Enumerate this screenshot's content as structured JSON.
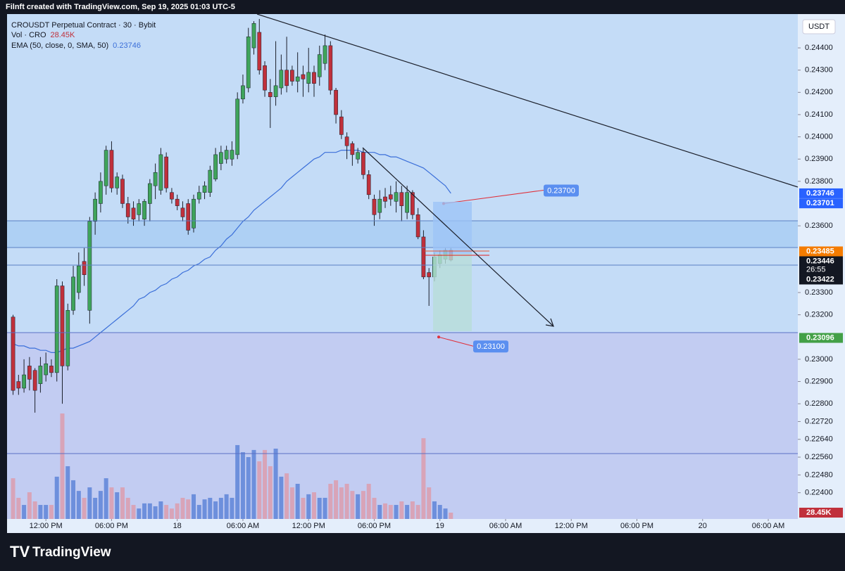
{
  "header": "Filnft created with TradingView.com, Sep 19, 2025 01:03 UTC-5",
  "footer": "TradingView",
  "chart_data": {
    "type": "candlestick",
    "title": "CROUSDT Perpetual Contract · 30 · Bybit",
    "currency": "USDT",
    "up_color": "#3fa45b",
    "down_color": "#c0303b",
    "open": [
      0.2319,
      0.229,
      0.2287,
      0.2297,
      0.2295,
      0.2289,
      0.2293,
      0.2297,
      0.2294,
      0.2333,
      0.2297,
      0.2322,
      0.233,
      0.2344,
      0.2322,
      0.2362,
      0.237,
      0.2378,
      0.2394,
      0.2377,
      0.2381,
      0.237,
      0.2368,
      0.2365,
      0.2363,
      0.237,
      0.2378,
      0.2376,
      0.2391,
      0.2375,
      0.2372,
      0.2368,
      0.237,
      0.2359,
      0.2372,
      0.2375,
      0.2375,
      0.2381,
      0.2388,
      0.239,
      0.239,
      0.2392,
      0.2417,
      0.2422,
      0.244,
      0.2447,
      0.2432,
      0.242,
      0.2418,
      0.2422,
      0.243,
      0.243,
      0.2425,
      0.2428,
      0.2424,
      0.2429,
      0.2427,
      0.2433,
      0.2441,
      0.2421,
      0.2409,
      0.24,
      0.2397,
      0.239,
      0.2393,
      0.2383,
      0.2372,
      0.2366,
      0.2373,
      0.2374,
      0.2371,
      0.2375,
      0.2366,
      0.2375,
      0.2365,
      0.2355,
      0.2339,
      0.2337,
      0.2343,
      0.2345,
      0.2349
    ],
    "high": [
      0.232,
      0.2293,
      0.23,
      0.2301,
      0.2296,
      0.2301,
      0.2303,
      0.23,
      0.2336,
      0.2335,
      0.2325,
      0.2342,
      0.2348,
      0.235,
      0.2364,
      0.2375,
      0.2384,
      0.2396,
      0.2398,
      0.2384,
      0.2383,
      0.2373,
      0.2371,
      0.2372,
      0.2372,
      0.2381,
      0.2388,
      0.2395,
      0.2393,
      0.2377,
      0.2374,
      0.2371,
      0.2372,
      0.2374,
      0.2378,
      0.238,
      0.2387,
      0.2395,
      0.2396,
      0.2396,
      0.2398,
      0.242,
      0.2428,
      0.2449,
      0.2452,
      0.2453,
      0.2434,
      0.2426,
      0.2443,
      0.2437,
      0.2445,
      0.2432,
      0.2438,
      0.2432,
      0.244,
      0.2432,
      0.2441,
      0.2446,
      0.2443,
      0.2422,
      0.2412,
      0.2402,
      0.2398,
      0.2395,
      0.2395,
      0.2385,
      0.2374,
      0.2376,
      0.2377,
      0.2378,
      0.238,
      0.2378,
      0.2378,
      0.2376,
      0.2368,
      0.2358,
      0.2341,
      0.2348,
      0.2349,
      0.235,
      0.235
    ],
    "low": [
      0.2284,
      0.2284,
      0.2285,
      0.2286,
      0.2276,
      0.2285,
      0.229,
      0.2292,
      0.229,
      0.228,
      0.2295,
      0.232,
      0.2327,
      0.2333,
      0.2316,
      0.2356,
      0.2366,
      0.2374,
      0.2375,
      0.2374,
      0.2368,
      0.2361,
      0.236,
      0.2362,
      0.236,
      0.2362,
      0.2372,
      0.2374,
      0.2375,
      0.237,
      0.2367,
      0.2362,
      0.2356,
      0.2357,
      0.237,
      0.2372,
      0.2373,
      0.238,
      0.2385,
      0.2388,
      0.2387,
      0.239,
      0.2415,
      0.242,
      0.2437,
      0.2428,
      0.2418,
      0.2404,
      0.2414,
      0.2419,
      0.242,
      0.2423,
      0.242,
      0.2418,
      0.242,
      0.2418,
      0.2423,
      0.243,
      0.2419,
      0.2406,
      0.2399,
      0.239,
      0.2387,
      0.2388,
      0.2381,
      0.2372,
      0.236,
      0.2363,
      0.2368,
      0.2369,
      0.2366,
      0.2362,
      0.2363,
      0.2363,
      0.2354,
      0.2336,
      0.2324,
      0.2335,
      0.2341,
      0.2343,
      0.2344
    ],
    "close": [
      0.2286,
      0.2287,
      0.2293,
      0.2291,
      0.2286,
      0.2297,
      0.2298,
      0.2294,
      0.2333,
      0.2297,
      0.2322,
      0.2337,
      0.2342,
      0.2338,
      0.2362,
      0.2372,
      0.238,
      0.2394,
      0.2377,
      0.2382,
      0.237,
      0.2364,
      0.2363,
      0.237,
      0.2371,
      0.2379,
      0.2384,
      0.2392,
      0.2377,
      0.2372,
      0.2369,
      0.2364,
      0.2358,
      0.2372,
      0.2375,
      0.2378,
      0.2385,
      0.2392,
      0.2393,
      0.2394,
      0.2394,
      0.2417,
      0.2423,
      0.2445,
      0.2451,
      0.243,
      0.2421,
      0.2418,
      0.2423,
      0.243,
      0.2423,
      0.2425,
      0.2427,
      0.2426,
      0.2429,
      0.2424,
      0.2437,
      0.2441,
      0.2421,
      0.241,
      0.2401,
      0.2396,
      0.2392,
      0.2393,
      0.2383,
      0.2374,
      0.2365,
      0.2372,
      0.2371,
      0.2372,
      0.2375,
      0.2369,
      0.2375,
      0.2365,
      0.2355,
      0.2337,
      0.2337,
      0.2346,
      0.2347,
      0.2349,
      0.23446
    ],
    "close_label": "0.23446",
    "countdown": "26:55",
    "volume": {
      "name": "Vol · CRO",
      "up_color": "#6d8fdc",
      "down_color": "#d8a4b8",
      "last_value_label": "28.45K",
      "values": [
        183000,
        95000,
        63000,
        120000,
        79000,
        63000,
        63000,
        63000,
        190000,
        474000,
        237000,
        174000,
        126000,
        95000,
        142000,
        95000,
        126000,
        183000,
        142000,
        120000,
        142000,
        95000,
        63000,
        47000,
        70000,
        70000,
        57000,
        79000,
        63000,
        47000,
        70000,
        95000,
        88000,
        111000,
        63000,
        88000,
        95000,
        79000,
        95000,
        111000,
        95000,
        332000,
        300000,
        278000,
        310000,
        259000,
        310000,
        237000,
        316000,
        190000,
        205000,
        142000,
        158000,
        95000,
        111000,
        120000,
        95000,
        95000,
        158000,
        174000,
        142000,
        158000,
        126000,
        111000,
        126000,
        158000,
        95000,
        63000,
        70000,
        63000,
        63000,
        79000,
        63000,
        79000,
        63000,
        363000,
        142000,
        79000,
        63000,
        47000,
        28450
      ]
    },
    "ema": {
      "name": "EMA (50, close, 0, SMA, 50)",
      "color": "#3b6fd9",
      "value_label": "0.23746",
      "values": [
        0.2307,
        0.2306,
        0.2306,
        0.2305,
        0.2305,
        0.2304,
        0.2304,
        0.2303,
        0.2303,
        0.2304,
        0.2305,
        0.2305,
        0.2306,
        0.2307,
        0.2308,
        0.231,
        0.2312,
        0.2314,
        0.2316,
        0.2318,
        0.232,
        0.2322,
        0.2324,
        0.2327,
        0.2328,
        0.233,
        0.2331,
        0.2333,
        0.2334,
        0.2336,
        0.2337,
        0.2339,
        0.234,
        0.2342,
        0.2343,
        0.2345,
        0.2346,
        0.2349,
        0.2351,
        0.2354,
        0.2356,
        0.2359,
        0.2362,
        0.2364,
        0.2367,
        0.2369,
        0.2371,
        0.2373,
        0.2375,
        0.2377,
        0.238,
        0.2382,
        0.2384,
        0.2386,
        0.2388,
        0.239,
        0.2391,
        0.2393,
        0.2393,
        0.2393,
        0.2394,
        0.2394,
        0.2394,
        0.2394,
        0.2393,
        0.2393,
        0.2393,
        0.2392,
        0.2392,
        0.2391,
        0.2391,
        0.239,
        0.2389,
        0.2388,
        0.2387,
        0.2386,
        0.2384,
        0.2382,
        0.238,
        0.2378,
        0.23746
      ]
    },
    "price_badges": [
      {
        "value": 0.23701,
        "label": "0.23701",
        "color": "#2962ff"
      },
      {
        "value": 0.23485,
        "label": "0.23485",
        "color": "#f57c00"
      },
      {
        "value": 0.23422,
        "label": "0.23422",
        "color": "#131722"
      },
      {
        "value": 0.23096,
        "label": "0.23096",
        "color": "#43a047"
      }
    ],
    "targets": [
      {
        "value": 0.237,
        "label": "0.23700"
      },
      {
        "value": 0.231,
        "label": "0.23100"
      }
    ],
    "grid": false,
    "xlim": [
      -1.1,
      143.4
    ],
    "xticks": [
      {
        "value": 6,
        "label": "12:00 PM"
      },
      {
        "value": 18,
        "label": "06:00 PM"
      },
      {
        "value": 30,
        "label": "18"
      },
      {
        "value": 42,
        "label": "06:00 AM"
      },
      {
        "value": 54,
        "label": "12:00 PM"
      },
      {
        "value": 66,
        "label": "06:00 PM"
      },
      {
        "value": 78,
        "label": "19"
      },
      {
        "value": 90,
        "label": "06:00 AM"
      },
      {
        "value": 102,
        "label": "12:00 PM"
      },
      {
        "value": 114,
        "label": "06:00 PM"
      },
      {
        "value": 126,
        "label": "20"
      },
      {
        "value": 138,
        "label": "06:00 AM"
      }
    ],
    "ylim": [
      0.22282,
      0.24552
    ],
    "yticks": [
      {
        "value": 0.244,
        "label": "0.24400"
      },
      {
        "value": 0.243,
        "label": "0.24300"
      },
      {
        "value": 0.242,
        "label": "0.24200"
      },
      {
        "value": 0.241,
        "label": "0.24100"
      },
      {
        "value": 0.24,
        "label": "0.24000"
      },
      {
        "value": 0.239,
        "label": "0.23900"
      },
      {
        "value": 0.238,
        "label": "0.23800"
      },
      {
        "value": 0.236,
        "label": "0.23600"
      },
      {
        "value": 0.233,
        "label": "0.23300"
      },
      {
        "value": 0.232,
        "label": "0.23200"
      },
      {
        "value": 0.23,
        "label": "0.23000"
      },
      {
        "value": 0.229,
        "label": "0.22900"
      },
      {
        "value": 0.228,
        "label": "0.22800"
      },
      {
        "value": 0.2272,
        "label": "0.22720"
      },
      {
        "value": 0.2264,
        "label": "0.22640"
      },
      {
        "value": 0.2256,
        "label": "0.22560"
      },
      {
        "value": 0.2248,
        "label": "0.22480"
      },
      {
        "value": 0.224,
        "label": "0.22400"
      }
    ]
  }
}
